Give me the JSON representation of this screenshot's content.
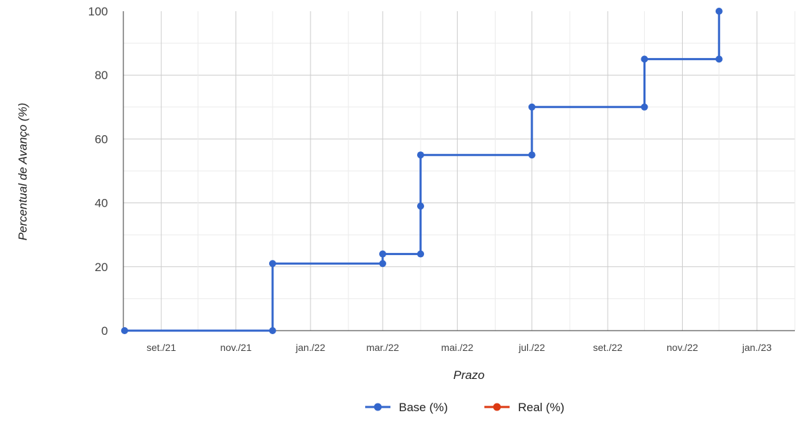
{
  "chart_data": {
    "type": "line",
    "title": "",
    "xlabel": "Prazo",
    "ylabel": "Percentual de Avanço (%)",
    "x_ticks": [
      "set./21",
      "nov./21",
      "jan./22",
      "mar./22",
      "mai./22",
      "jul./22",
      "set./22",
      "nov./22",
      "jan./23"
    ],
    "x_tick_dates": [
      "2021-09-01",
      "2021-11-01",
      "2022-01-01",
      "2022-03-01",
      "2022-05-01",
      "2022-07-01",
      "2022-09-01",
      "2022-11-01",
      "2023-01-01"
    ],
    "x_range": [
      "2021-08-01",
      "2023-02-01"
    ],
    "y_ticks": [
      0,
      20,
      40,
      60,
      80,
      100
    ],
    "ylim": [
      0,
      100
    ],
    "grid": true,
    "legend_position": "bottom",
    "series": [
      {
        "name": "Base (%)",
        "color": "#3366cc",
        "step": true,
        "points": [
          {
            "x": "2021-08-02",
            "y": 0
          },
          {
            "x": "2021-12-01",
            "y": 0
          },
          {
            "x": "2021-12-01",
            "y": 21
          },
          {
            "x": "2022-03-01",
            "y": 21
          },
          {
            "x": "2022-03-01",
            "y": 24
          },
          {
            "x": "2022-04-01",
            "y": 24
          },
          {
            "x": "2022-04-01",
            "y": 39
          },
          {
            "x": "2022-04-01",
            "y": 55
          },
          {
            "x": "2022-07-01",
            "y": 55
          },
          {
            "x": "2022-07-01",
            "y": 70
          },
          {
            "x": "2022-10-01",
            "y": 70
          },
          {
            "x": "2022-10-01",
            "y": 85
          },
          {
            "x": "2022-12-01",
            "y": 85
          },
          {
            "x": "2022-12-01",
            "y": 100
          }
        ]
      },
      {
        "name": "Real (%)",
        "color": "#dc3912",
        "step": true,
        "points": []
      }
    ]
  }
}
